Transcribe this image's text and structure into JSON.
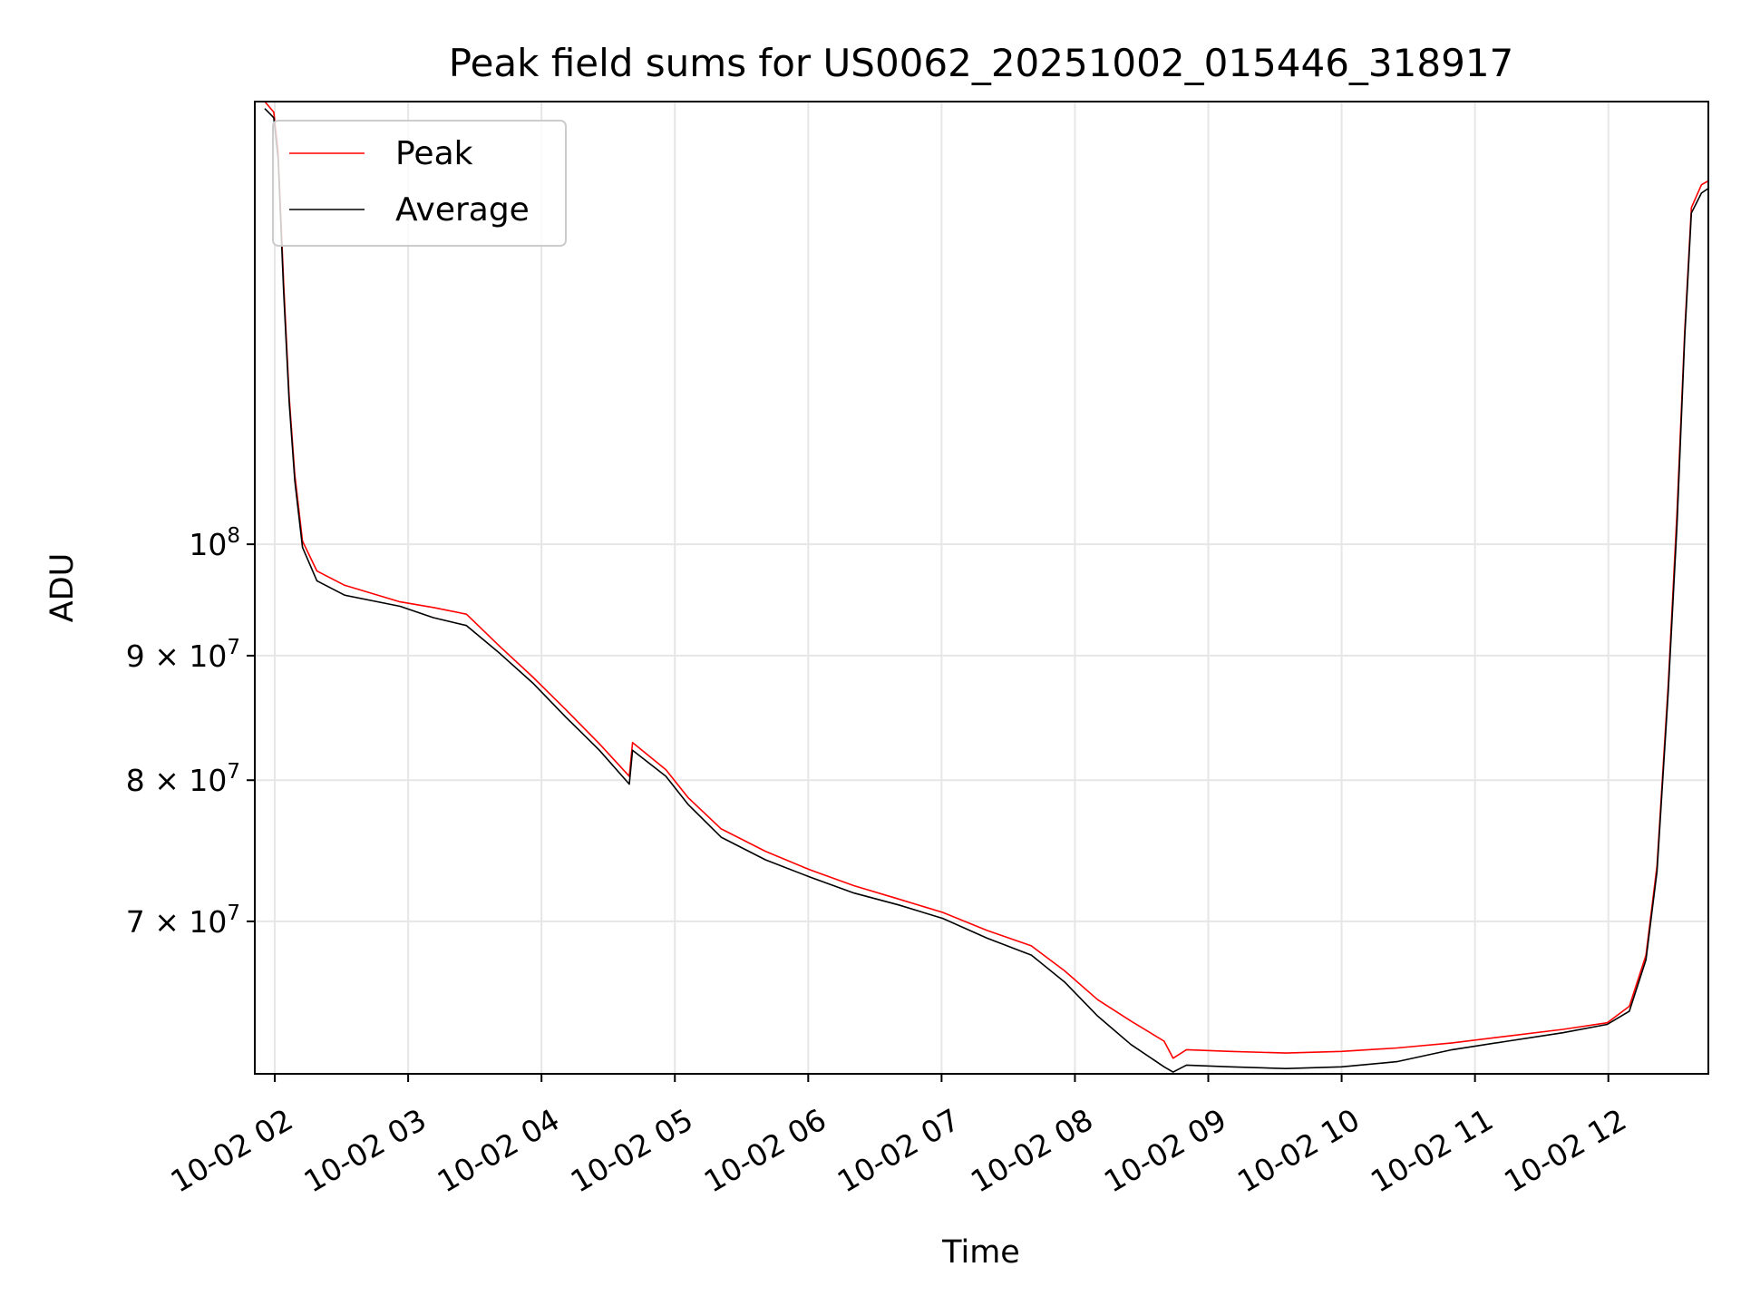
{
  "chart_data": {
    "type": "line",
    "title": "Peak field sums for US0062_20251002_015446_318917",
    "xlabel": "Time",
    "ylabel": "ADU",
    "yscale": "log",
    "x_unit": "hours since 2025-10-02 00:00",
    "xlim": [
      1.85,
      12.75
    ],
    "ylim": [
      60600000.0,
      152000000.0
    ],
    "grid": true,
    "legend_position": "top-left",
    "x_ticks": [
      {
        "value": 2,
        "label": "10-02 02"
      },
      {
        "value": 3,
        "label": "10-02 03"
      },
      {
        "value": 4,
        "label": "10-02 04"
      },
      {
        "value": 5,
        "label": "10-02 05"
      },
      {
        "value": 6,
        "label": "10-02 06"
      },
      {
        "value": 7,
        "label": "10-02 07"
      },
      {
        "value": 8,
        "label": "10-02 08"
      },
      {
        "value": 9,
        "label": "10-02 09"
      },
      {
        "value": 10,
        "label": "10-02 10"
      },
      {
        "value": 11,
        "label": "10-02 11"
      },
      {
        "value": 12,
        "label": "10-02 12"
      }
    ],
    "y_ticks": [
      {
        "value": 100000000.0,
        "base": "10",
        "exp": "8"
      },
      {
        "value": 90000000.0,
        "base": "9 × 10",
        "exp": "7"
      },
      {
        "value": 80000000.0,
        "base": "8 × 10",
        "exp": "7"
      },
      {
        "value": 70000000.0,
        "base": "7 × 10",
        "exp": "7"
      }
    ],
    "x": [
      1.925,
      1.992,
      2.025,
      2.066,
      2.108,
      2.15,
      2.208,
      2.316,
      2.523,
      2.939,
      3.188,
      3.437,
      3.686,
      3.935,
      4.184,
      4.434,
      4.658,
      4.683,
      4.932,
      5.098,
      5.347,
      5.679,
      6.012,
      6.344,
      6.676,
      7.008,
      7.341,
      7.673,
      7.922,
      8.171,
      8.42,
      8.669,
      8.736,
      8.836,
      9.168,
      9.583,
      9.998,
      10.414,
      10.829,
      11.244,
      11.659,
      11.992,
      12.158,
      12.282,
      12.365,
      12.449,
      12.515,
      12.573,
      12.623,
      12.698,
      12.748
    ],
    "series": [
      {
        "name": "Peak",
        "color": "#ff0000",
        "values": [
          152000000.0,
          150500000.0,
          145000000.0,
          128000000.0,
          115000000.0,
          106800000.0,
          100300000.0,
          97500000.0,
          96200000.0,
          94700000.0,
          94200000.0,
          93600000.0,
          90800000.0,
          88200000.0,
          85500000.0,
          82800000.0,
          80300000.0,
          82900000.0,
          80800000.0,
          78700000.0,
          76400000.0,
          74800000.0,
          73500000.0,
          72400000.0,
          71500000.0,
          70600000.0,
          69400000.0,
          68400000.0,
          66800000.0,
          65000000.0,
          63700000.0,
          62500000.0,
          61500000.0,
          62000000.0,
          61900000.0,
          61800000.0,
          61900000.0,
          62100000.0,
          62400000.0,
          62800000.0,
          63200000.0,
          63600000.0,
          64600000.0,
          67800000.0,
          73800000.0,
          87500000.0,
          103000000.0,
          122500000.0,
          137500000.0,
          140500000.0,
          141000000.0
        ]
      },
      {
        "name": "Average",
        "color": "#000000",
        "values": [
          151000000.0,
          149700000.0,
          144000000.0,
          127000000.0,
          114400000.0,
          106200000.0,
          99700000.0,
          96600000.0,
          95300000.0,
          94300000.0,
          93300000.0,
          92600000.0,
          90200000.0,
          87700000.0,
          84900000.0,
          82300000.0,
          79700000.0,
          82300000.0,
          80300000.0,
          78200000.0,
          75800000.0,
          74200000.0,
          73000000.0,
          71900000.0,
          71100000.0,
          70200000.0,
          68900000.0,
          67800000.0,
          66100000.0,
          64000000.0,
          62300000.0,
          61000000.0,
          60700000.0,
          61100000.0,
          61000000.0,
          60900000.0,
          61000000.0,
          61300000.0,
          62000000.0,
          62500000.0,
          63000000.0,
          63500000.0,
          64300000.0,
          67500000.0,
          73400000.0,
          86900000.0,
          101800000.0,
          121800000.0,
          136800000.0,
          139400000.0,
          140000000.0
        ]
      }
    ]
  }
}
